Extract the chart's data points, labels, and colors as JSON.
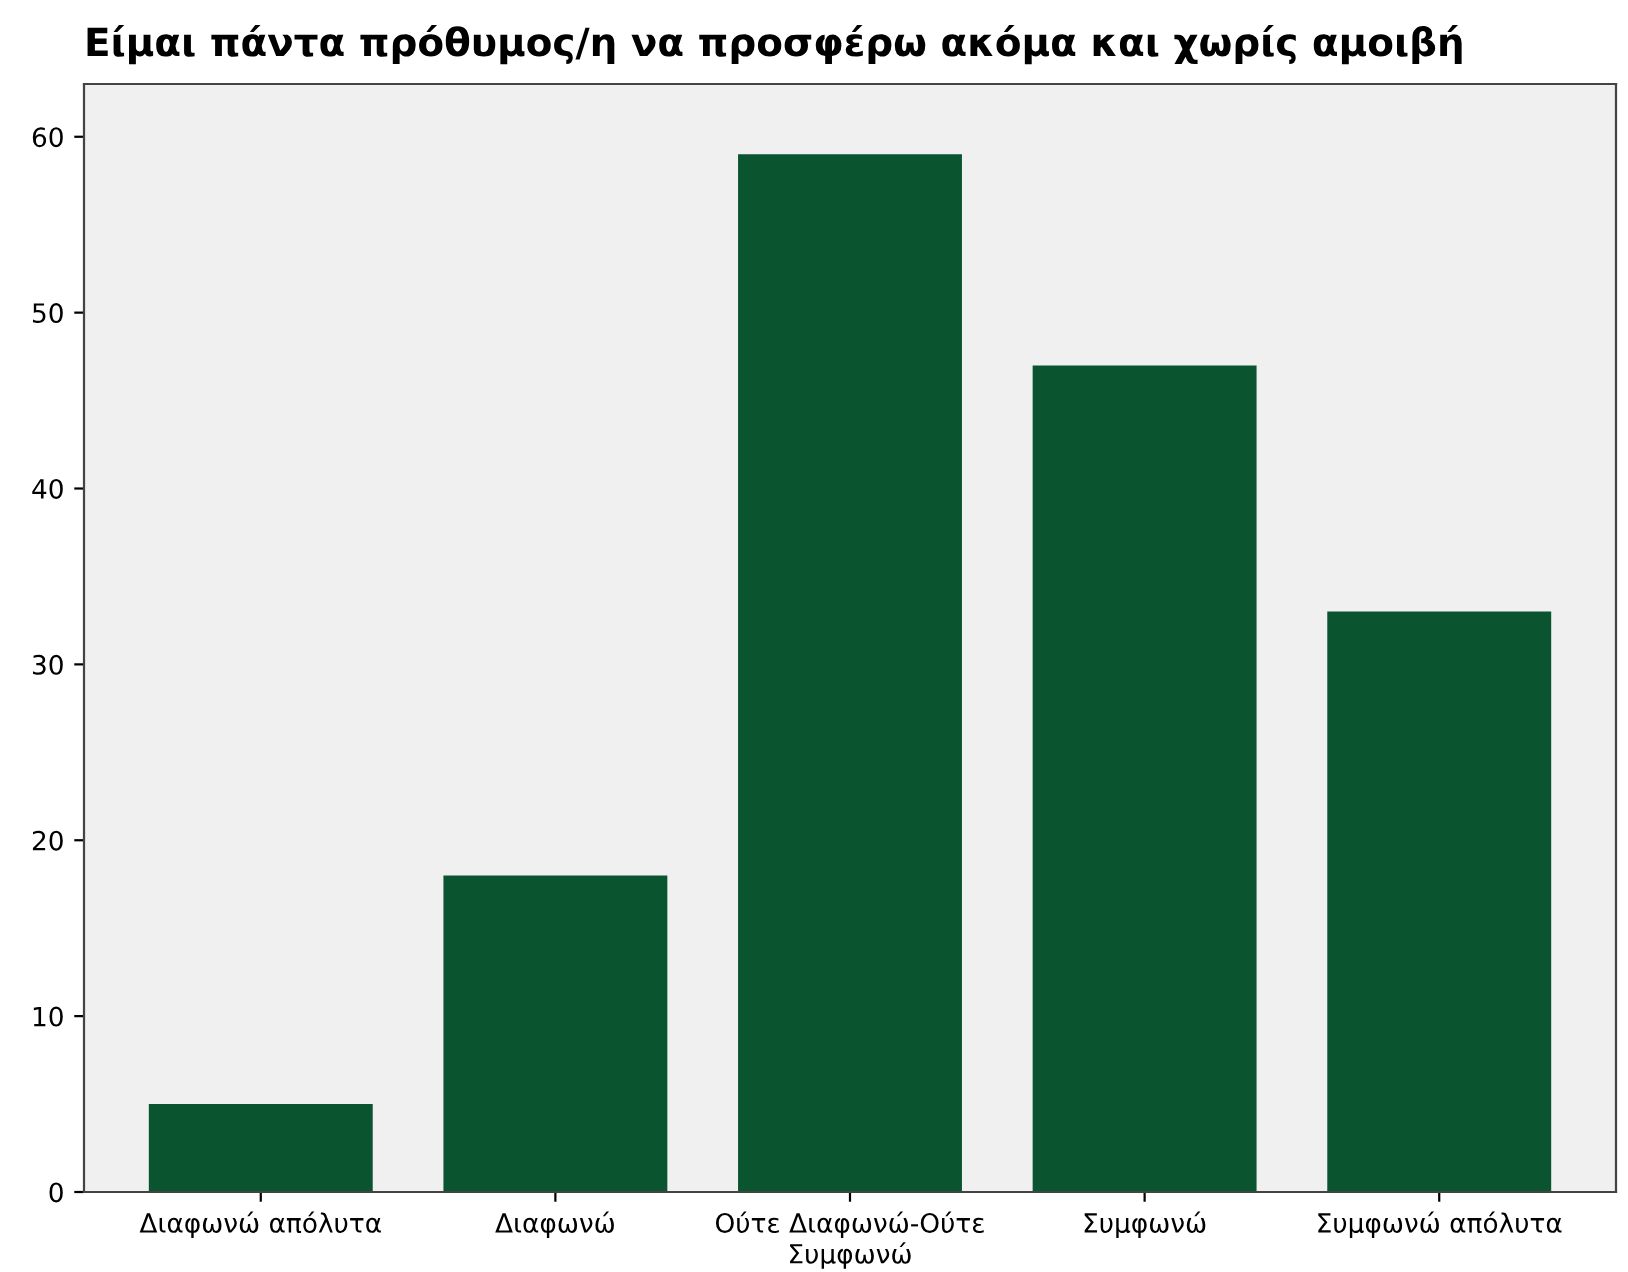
{
  "chart_data": {
    "type": "bar",
    "title": "Είμαι πάντα πρόθυμος/η να προσφέρω ακόμα και χωρίς αμοιβή",
    "categories": [
      "Διαφωνώ απόλυτα",
      "Διαφωνώ",
      "Ούτε Διαφωνώ-Ούτε Συμφωνώ",
      "Συμφωνώ",
      "Συμφωνώ απόλυτα"
    ],
    "values": [
      5,
      18,
      59,
      47,
      33
    ],
    "color": "#0b5430",
    "ylim": [
      0,
      63
    ],
    "yticks": [
      0,
      10,
      20,
      30,
      40,
      50,
      60
    ],
    "grid": false,
    "legend": false
  }
}
